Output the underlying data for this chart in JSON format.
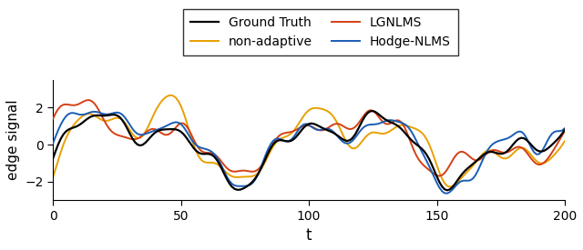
{
  "title": "",
  "xlabel": "t",
  "ylabel": "edge signal",
  "xlim": [
    0,
    200
  ],
  "ylim": [
    -3.0,
    3.5
  ],
  "yticks": [
    -2,
    0,
    2
  ],
  "xticks": [
    0,
    50,
    100,
    150,
    200
  ],
  "legend_entries": [
    "Ground Truth",
    "non-adaptive",
    "LGNLMS",
    "Hodge-NLMS"
  ],
  "colors": {
    "ground_truth": "#000000",
    "non_adaptive": "#E8A000",
    "lgnlms": "#D44015",
    "hodge": "#1A5DB5"
  },
  "linewidths": {
    "ground_truth": 1.6,
    "non_adaptive": 1.4,
    "lgnlms": 1.4,
    "hodge": 1.4
  },
  "legend_ncol": 2,
  "figsize": [
    6.4,
    2.75
  ],
  "dpi": 100,
  "background": "#ffffff"
}
